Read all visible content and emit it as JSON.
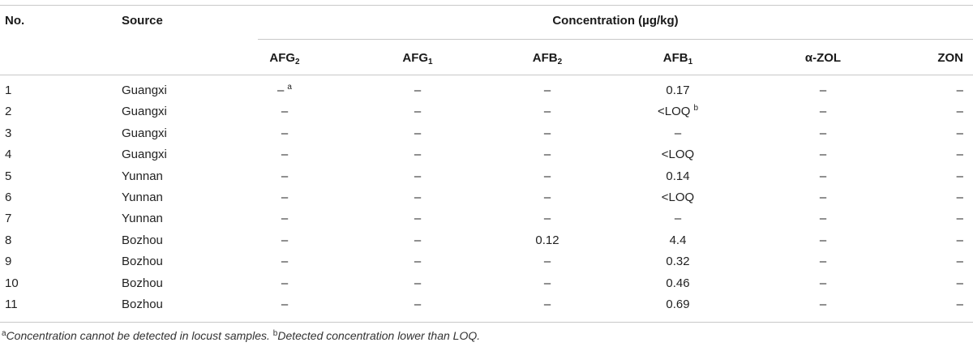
{
  "table": {
    "headers": {
      "no": "No.",
      "source": "Source",
      "concentration": "Concentration (µg/kg)",
      "columns": [
        {
          "base": "AFG",
          "sub": "2"
        },
        {
          "base": "AFG",
          "sub": "1"
        },
        {
          "base": "AFB",
          "sub": "2"
        },
        {
          "base": "AFB",
          "sub": "1"
        },
        {
          "base": "α-ZOL",
          "sub": ""
        },
        {
          "base": "ZON",
          "sub": ""
        }
      ]
    },
    "rows": [
      {
        "no": "1",
        "source": "Guangxi",
        "values": [
          "–",
          "–",
          "–",
          "0.17",
          "–",
          "–"
        ],
        "marks": [
          "a",
          "",
          "",
          "",
          "",
          ""
        ]
      },
      {
        "no": "2",
        "source": "Guangxi",
        "values": [
          "–",
          "–",
          "–",
          "<LOQ",
          "–",
          "–"
        ],
        "marks": [
          "",
          "",
          "",
          "b",
          "",
          ""
        ]
      },
      {
        "no": "3",
        "source": "Guangxi",
        "values": [
          "–",
          "–",
          "–",
          "–",
          "–",
          "–"
        ],
        "marks": [
          "",
          "",
          "",
          "",
          "",
          ""
        ]
      },
      {
        "no": "4",
        "source": "Guangxi",
        "values": [
          "–",
          "–",
          "–",
          "<LOQ",
          "–",
          "–"
        ],
        "marks": [
          "",
          "",
          "",
          "",
          "",
          ""
        ]
      },
      {
        "no": "5",
        "source": "Yunnan",
        "values": [
          "–",
          "–",
          "–",
          "0.14",
          "–",
          "–"
        ],
        "marks": [
          "",
          "",
          "",
          "",
          "",
          ""
        ]
      },
      {
        "no": "6",
        "source": "Yunnan",
        "values": [
          "–",
          "–",
          "–",
          "<LOQ",
          "–",
          "–"
        ],
        "marks": [
          "",
          "",
          "",
          "",
          "",
          ""
        ]
      },
      {
        "no": "7",
        "source": "Yunnan",
        "values": [
          "–",
          "–",
          "–",
          "–",
          "–",
          "–"
        ],
        "marks": [
          "",
          "",
          "",
          "",
          "",
          ""
        ]
      },
      {
        "no": "8",
        "source": "Bozhou",
        "values": [
          "–",
          "–",
          "0.12",
          "4.4",
          "–",
          "–"
        ],
        "marks": [
          "",
          "",
          "",
          "",
          "",
          ""
        ]
      },
      {
        "no": "9",
        "source": "Bozhou",
        "values": [
          "–",
          "–",
          "–",
          "0.32",
          "–",
          "–"
        ],
        "marks": [
          "",
          "",
          "",
          "",
          "",
          ""
        ]
      },
      {
        "no": "10",
        "source": "Bozhou",
        "values": [
          "–",
          "–",
          "–",
          "0.46",
          "–",
          "–"
        ],
        "marks": [
          "",
          "",
          "",
          "",
          "",
          ""
        ]
      },
      {
        "no": "11",
        "source": "Bozhou",
        "values": [
          "–",
          "–",
          "–",
          "0.69",
          "–",
          "–"
        ],
        "marks": [
          "",
          "",
          "",
          "",
          "",
          ""
        ]
      }
    ]
  },
  "footnotes": [
    {
      "mark": "a",
      "text": "Concentration cannot be detected in locust samples."
    },
    {
      "mark": "b",
      "text": "Detected concentration lower than LOQ."
    }
  ]
}
